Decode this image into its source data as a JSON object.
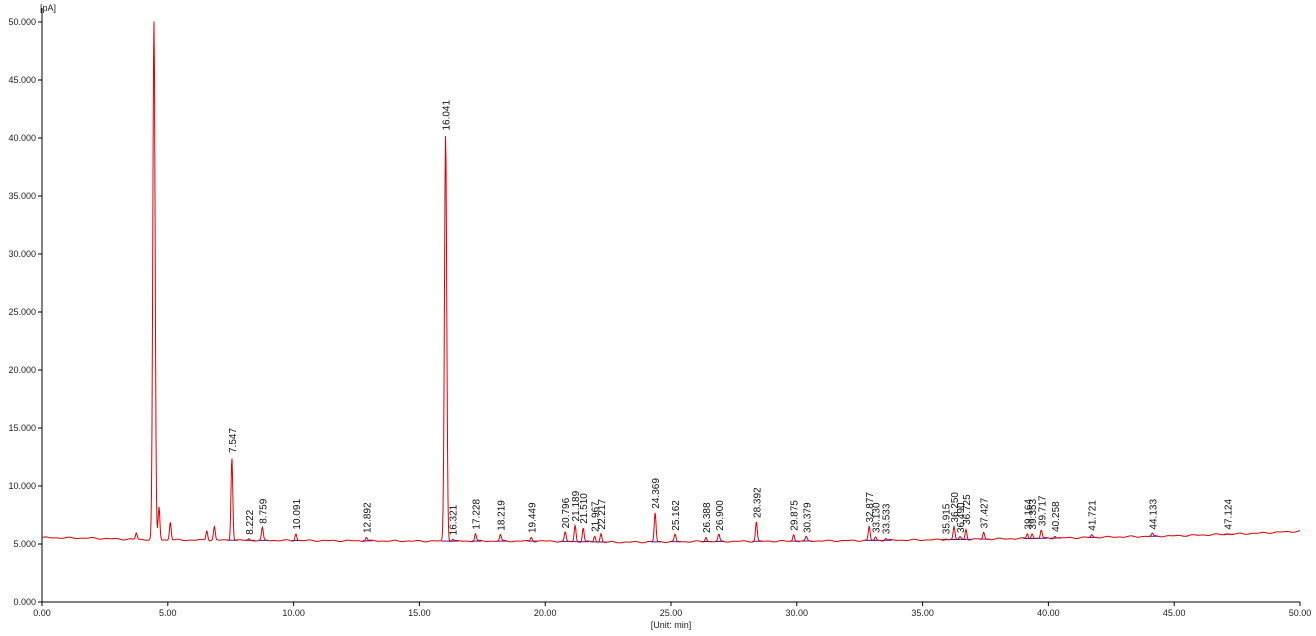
{
  "chart_data": {
    "type": "line",
    "title": "",
    "ylabel": "[pA]",
    "xlabel": "[Unit: min]",
    "xlim": [
      0,
      50
    ],
    "ylim": [
      0,
      50
    ],
    "grid": false,
    "x_tick_labels": [
      "0.00",
      "5.00",
      "10.00",
      "15.00",
      "20.00",
      "25.00",
      "30.00",
      "35.00",
      "40.00",
      "45.00",
      "50.00"
    ],
    "y_tick_labels": [
      "0.000",
      "5.000",
      "10.000",
      "15.000",
      "20.000",
      "25.000",
      "30.000",
      "35.000",
      "40.000",
      "45.000",
      "50.000"
    ],
    "colors": {
      "trace": "#dd0000",
      "baseline_marks": "#2222cc",
      "axis": "#000000"
    },
    "series": [
      {
        "color": "#dd0000",
        "baseline": [
          [
            0,
            5.55
          ],
          [
            2,
            5.5
          ],
          [
            3.5,
            5.4
          ],
          [
            5,
            5.35
          ],
          [
            10,
            5.3
          ],
          [
            15,
            5.25
          ],
          [
            20,
            5.25
          ],
          [
            22.8,
            5.15
          ],
          [
            25,
            5.2
          ],
          [
            30,
            5.25
          ],
          [
            35,
            5.35
          ],
          [
            40,
            5.5
          ],
          [
            45,
            5.7
          ],
          [
            48,
            5.9
          ],
          [
            50,
            6.1
          ]
        ],
        "peaks": [
          {
            "rt": 3.75,
            "height": 5.95,
            "labeled": false
          },
          {
            "rt": 4.45,
            "height": 50.0,
            "labeled": false
          },
          {
            "rt": 4.65,
            "height": 8.2,
            "labeled": false
          },
          {
            "rt": 5.1,
            "height": 6.9,
            "labeled": false
          },
          {
            "rt": 6.55,
            "height": 6.2,
            "labeled": false
          },
          {
            "rt": 6.85,
            "height": 6.5,
            "labeled": false
          },
          {
            "rt": 7.547,
            "height": 12.5,
            "labeled": true,
            "label": "7.547"
          },
          {
            "rt": 8.222,
            "height": 5.45,
            "labeled": true,
            "label": "8.222"
          },
          {
            "rt": 8.759,
            "height": 6.4,
            "labeled": true,
            "label": "8.759"
          },
          {
            "rt": 10.091,
            "height": 5.9,
            "labeled": true,
            "label": "10.091"
          },
          {
            "rt": 12.892,
            "height": 5.6,
            "labeled": true,
            "label": "12.892"
          },
          {
            "rt": 16.041,
            "height": 40.3,
            "labeled": true,
            "label": "16.041"
          },
          {
            "rt": 16.321,
            "height": 5.4,
            "labeled": true,
            "label": "16.321"
          },
          {
            "rt": 17.228,
            "height": 5.9,
            "labeled": true,
            "label": "17.228"
          },
          {
            "rt": 18.219,
            "height": 5.8,
            "labeled": true,
            "label": "18.219"
          },
          {
            "rt": 19.449,
            "height": 5.6,
            "labeled": true,
            "label": "19.449"
          },
          {
            "rt": 20.796,
            "height": 6.0,
            "labeled": true,
            "label": "20.796"
          },
          {
            "rt": 21.189,
            "height": 6.6,
            "labeled": true,
            "label": "21.189"
          },
          {
            "rt": 21.51,
            "height": 6.4,
            "labeled": true,
            "label": "21.510"
          },
          {
            "rt": 21.967,
            "height": 5.7,
            "labeled": true,
            "label": "21.967"
          },
          {
            "rt": 22.217,
            "height": 5.9,
            "labeled": true,
            "label": "22.217"
          },
          {
            "rt": 24.369,
            "height": 7.7,
            "labeled": true,
            "label": "24.369"
          },
          {
            "rt": 25.162,
            "height": 5.8,
            "labeled": true,
            "label": "25.162"
          },
          {
            "rt": 26.388,
            "height": 5.6,
            "labeled": true,
            "label": "26.388"
          },
          {
            "rt": 26.9,
            "height": 5.8,
            "labeled": true,
            "label": "26.900"
          },
          {
            "rt": 28.392,
            "height": 6.9,
            "labeled": true,
            "label": "28.392"
          },
          {
            "rt": 29.875,
            "height": 5.8,
            "labeled": true,
            "label": "29.875"
          },
          {
            "rt": 30.379,
            "height": 5.6,
            "labeled": true,
            "label": "30.379"
          },
          {
            "rt": 32.877,
            "height": 6.5,
            "labeled": true,
            "label": "32.877"
          },
          {
            "rt": 33.13,
            "height": 5.6,
            "labeled": true,
            "label": "33.130"
          },
          {
            "rt": 33.533,
            "height": 5.5,
            "labeled": true,
            "label": "33.533"
          },
          {
            "rt": 35.915,
            "height": 5.5,
            "labeled": true,
            "label": "35.915"
          },
          {
            "rt": 36.25,
            "height": 6.5,
            "labeled": true,
            "label": "36.250"
          },
          {
            "rt": 36.49,
            "height": 5.6,
            "labeled": true,
            "label": "36.490"
          },
          {
            "rt": 36.725,
            "height": 6.3,
            "labeled": true,
            "label": "36.725"
          },
          {
            "rt": 37.427,
            "height": 6.0,
            "labeled": true,
            "label": "37.427"
          },
          {
            "rt": 39.164,
            "height": 5.9,
            "labeled": true,
            "label": "39.164"
          },
          {
            "rt": 39.353,
            "height": 5.9,
            "labeled": true,
            "label": "39.353"
          },
          {
            "rt": 39.717,
            "height": 6.2,
            "labeled": true,
            "label": "39.717"
          },
          {
            "rt": 40.258,
            "height": 5.7,
            "labeled": true,
            "label": "40.258"
          },
          {
            "rt": 41.721,
            "height": 5.8,
            "labeled": true,
            "label": "41.721"
          },
          {
            "rt": 44.133,
            "height": 5.9,
            "labeled": true,
            "label": "44.133"
          },
          {
            "rt": 47.124,
            "height": 5.9,
            "labeled": true,
            "label": "47.124"
          }
        ]
      }
    ]
  }
}
